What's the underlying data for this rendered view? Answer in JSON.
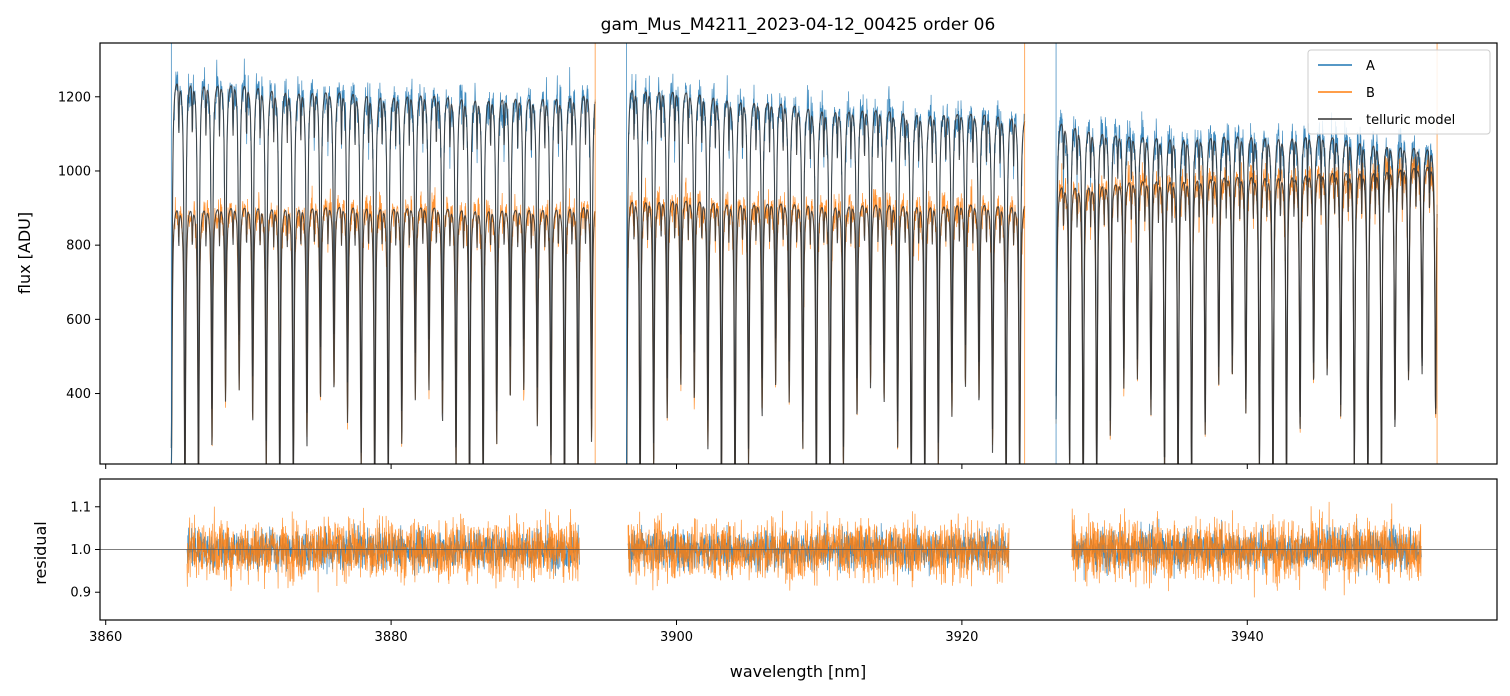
{
  "chart_data": [
    {
      "type": "line",
      "title": "gam_Mus_M4211_2023-04-12_00425  order 06",
      "xlabel": "",
      "ylabel": "flux [ADU]",
      "xlim": [
        3859.6,
        3957.5
      ],
      "ylim": [
        210,
        1345
      ],
      "yticks": [
        400,
        600,
        800,
        1000,
        1200
      ],
      "xticks": [
        3860,
        3880,
        3900,
        3920,
        3940
      ],
      "x_tick_labels_shown": false,
      "grid": false,
      "legend_position": "top-right",
      "legend": [
        "A",
        "B",
        "telluric model"
      ],
      "colors": {
        "A": "#1f77b4",
        "B": "#ff7f0e",
        "telluric model": "#333333"
      },
      "segments_nm": [
        [
          3864.6,
          3894.3
        ],
        [
          3896.5,
          3924.4
        ],
        [
          3926.6,
          3953.3
        ]
      ],
      "line_spacing_nm": 0.95,
      "series": [
        {
          "name": "A",
          "continuum_points": [
            [
              3865,
              1265
            ],
            [
              3875,
              1235
            ],
            [
              3890,
              1215
            ],
            [
              3897,
              1250
            ],
            [
              3910,
              1190
            ],
            [
              3924,
              1170
            ],
            [
              3927,
              1150
            ],
            [
              3932,
              1110
            ],
            [
              3945,
              1115
            ],
            [
              3953,
              1075
            ]
          ],
          "noise_level": 55
        },
        {
          "name": "B",
          "continuum_points": [
            [
              3865,
              915
            ],
            [
              3880,
              920
            ],
            [
              3890,
              910
            ],
            [
              3897,
              940
            ],
            [
              3910,
              925
            ],
            [
              3924,
              925
            ],
            [
              3927,
              975
            ],
            [
              3935,
              995
            ],
            [
              3945,
              1010
            ],
            [
              3953,
              1030
            ]
          ],
          "noise_level": 50
        },
        {
          "name": "telluric model",
          "line_depth_min": 210,
          "line_depth_max": 470
        }
      ]
    },
    {
      "type": "line",
      "title": "",
      "xlabel": "wavelength [nm]",
      "ylabel": "residual",
      "xlim": [
        3859.6,
        3957.5
      ],
      "ylim": [
        0.835,
        1.165
      ],
      "yticks": [
        0.9,
        1.0,
        1.1
      ],
      "ytick_labels": [
        "0.9",
        "1.0",
        "1.1"
      ],
      "xticks": [
        3860,
        3880,
        3900,
        3920,
        3940
      ],
      "xtick_labels": [
        "3860",
        "3880",
        "3900",
        "3920",
        "3940"
      ],
      "reference_line": 1.0,
      "segments_nm": [
        [
          3865.7,
          3893.2
        ],
        [
          3896.6,
          3923.3
        ],
        [
          3927.7,
          3952.2
        ]
      ],
      "series": [
        {
          "name": "A",
          "center": 1.0,
          "noise_sigma": 0.045
        },
        {
          "name": "B",
          "center": 1.0,
          "noise_sigma": 0.07
        }
      ]
    }
  ]
}
